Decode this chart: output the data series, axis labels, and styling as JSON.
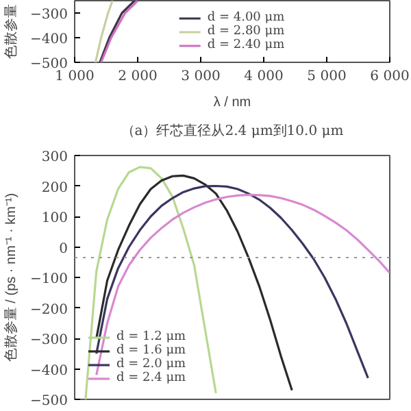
{
  "chart_data": [
    {
      "type": "line",
      "ylabel": "色散参量",
      "xlabel": "λ / nm",
      "annotations": [
        "（a）纤芯直径从2.4 μm到10.0 μm"
      ],
      "xlim": [
        1000,
        6000
      ],
      "xticks": [
        {
          "value": 1000,
          "label": "1 000"
        },
        {
          "value": 2000,
          "label": "2 000"
        },
        {
          "value": 3000,
          "label": "3 000"
        },
        {
          "value": 4000,
          "label": "4 000"
        },
        {
          "value": 5000,
          "label": "5 000"
        },
        {
          "value": 6000,
          "label": "6 000"
        }
      ],
      "ylim": [
        -500,
        -250
      ],
      "yticks": [
        {
          "value": -500,
          "label": "−500"
        },
        {
          "value": -400,
          "label": "−400"
        },
        {
          "value": -300,
          "label": "−300"
        }
      ],
      "legend": "center",
      "grid": false,
      "series": [
        {
          "name": "d = 4.00 μm",
          "color": "#3a3548",
          "x": [
            1400,
            1550,
            1750,
            1950
          ],
          "values": [
            -500,
            -400,
            -300,
            -250
          ]
        },
        {
          "name": "d = 2.80 μm",
          "color": "#c8d0a0",
          "x": [
            1330,
            1420,
            1530,
            1600
          ],
          "values": [
            -500,
            -400,
            -300,
            -250
          ]
        },
        {
          "name": "d = 2.40 μm",
          "color": "#d070c0",
          "x": [
            1420,
            1580,
            1800,
            2000
          ],
          "values": [
            -500,
            -400,
            -300,
            -250
          ]
        }
      ]
    },
    {
      "type": "line",
      "ylabel": "色散参量 / (ps · nm⁻¹ · km⁻¹)",
      "categories": [
        null,
        null,
        null,
        null,
        null,
        null,
        null,
        null,
        null,
        null,
        null,
        null,
        null,
        null,
        null,
        null,
        null,
        null,
        null,
        null,
        null,
        null,
        null,
        null,
        null,
        null,
        null,
        null,
        null,
        null
      ],
      "ylim": [
        -500,
        300
      ],
      "yticks": [
        {
          "value": -500,
          "label": "−500"
        },
        {
          "value": -400,
          "label": "−400"
        },
        {
          "value": -300,
          "label": "−300"
        },
        {
          "value": -200,
          "label": "−200"
        },
        {
          "value": -100,
          "label": "−100"
        },
        0,
        100,
        200,
        300
      ],
      "tick_labels": "y",
      "legend": "bottom left",
      "grid": false,
      "ref_lines": [
        {
          "axis": "y",
          "value": -35,
          "color": "#999999",
          "line_style": "dotted"
        }
      ],
      "series": [
        {
          "name": "d = 1.2 μm",
          "color": "#b8d890",
          "values": [
            null,
            -500,
            -80,
            90,
            190,
            245,
            262,
            258,
            225,
            165,
            60,
            -60,
            -270,
            -480,
            null,
            null,
            null,
            null,
            null,
            null,
            null,
            null,
            null,
            null,
            null,
            null,
            null,
            null,
            null,
            null
          ]
        },
        {
          "name": "d = 1.6 μm",
          "color": "#2a2a2a",
          "values": [
            null,
            null,
            -300,
            -110,
            -10,
            70,
            140,
            190,
            218,
            232,
            234,
            225,
            205,
            175,
            120,
            50,
            -35,
            -130,
            -240,
            -360,
            -470,
            null,
            null,
            null,
            null,
            null,
            null,
            null,
            null,
            null
          ]
        },
        {
          "name": "d = 2.0 μm",
          "color": "#3a3560",
          "values": [
            null,
            null,
            -350,
            -170,
            -70,
            0,
            55,
            100,
            135,
            160,
            180,
            192,
            199,
            200,
            198,
            190,
            175,
            155,
            128,
            95,
            55,
            10,
            -40,
            -100,
            -170,
            -250,
            -340,
            -430,
            null,
            null
          ]
        },
        {
          "name": "d = 2.4 μm",
          "color": "#d888d0",
          "values": [
            null,
            null,
            -420,
            -250,
            -130,
            -60,
            -10,
            30,
            62,
            90,
            112,
            130,
            145,
            156,
            164,
            169,
            171,
            170,
            167,
            160,
            150,
            138,
            122,
            102,
            80,
            55,
            25,
            -10,
            -45,
            -85
          ]
        }
      ]
    }
  ]
}
